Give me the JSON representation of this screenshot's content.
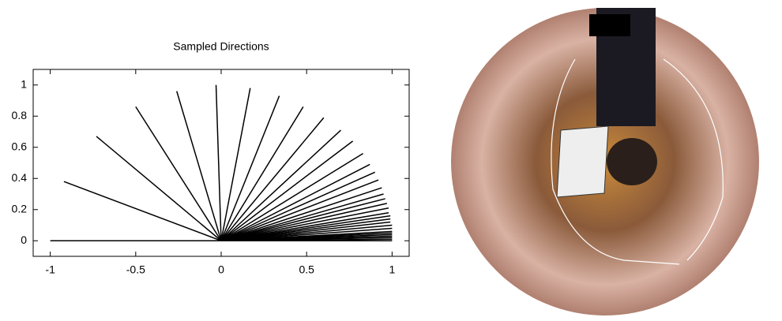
{
  "chart_data": {
    "type": "rays",
    "title": "Sampled Directions",
    "x": [
      -1,
      -0.92,
      -0.73,
      -0.5,
      -0.26,
      -0.03,
      0.17,
      0.34,
      0.48,
      0.6,
      0.7,
      0.77,
      0.83,
      0.87,
      0.9,
      0.92,
      0.94,
      0.95,
      0.96,
      0.97,
      0.98,
      0.98,
      0.99,
      0.99,
      0.99,
      1,
      1,
      1,
      1,
      1,
      1,
      1,
      1,
      1
    ],
    "values": [
      0,
      0.38,
      0.67,
      0.86,
      0.96,
      1,
      0.98,
      0.93,
      0.86,
      0.79,
      0.71,
      0.64,
      0.56,
      0.49,
      0.44,
      0.39,
      0.34,
      0.3,
      0.27,
      0.24,
      0.21,
      0.18,
      0.16,
      0.14,
      0.12,
      0.1,
      0.08,
      0.06,
      0.05,
      0.04,
      0.03,
      0.02,
      0.01,
      0
    ],
    "color": "#000000",
    "xlim": [
      -1.1,
      1.1
    ],
    "xticks": [
      -1,
      -0.5,
      0,
      0.5,
      1
    ],
    "ylim": [
      -0.1,
      1.1
    ],
    "yticks": [
      0,
      0.2,
      0.4,
      0.6,
      0.8,
      1
    ]
  }
}
